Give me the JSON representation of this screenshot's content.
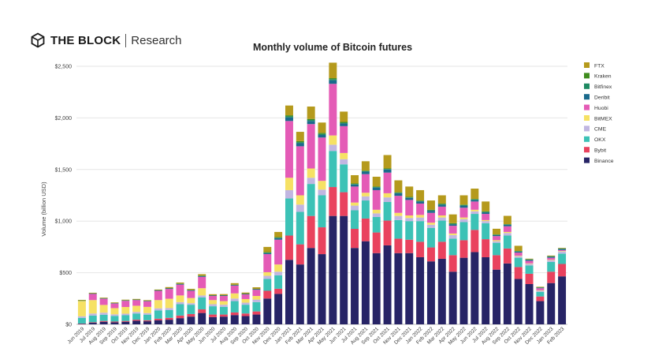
{
  "brand": {
    "name": "THE BLOCK",
    "sub": "Research",
    "logo_icon": "the-block-cube-icon"
  },
  "colors": {
    "FTX": "#b59a1c",
    "Kraken": "#3f8c1e",
    "Bitfinex": "#1e8a62",
    "Deribit": "#1a6a8c",
    "Huobi": "#e45bb6",
    "BitMEX": "#f6e164",
    "CME": "#c1b6e1",
    "OKX": "#3cc2b6",
    "Bybit": "#e9425e",
    "Binance": "#272466"
  },
  "chart_data": {
    "type": "bar",
    "stacked": true,
    "title": "Monthly volume of Bitcoin futures",
    "xlabel": "",
    "ylabel": "Volume (billion USD)",
    "ylim": [
      0,
      2500
    ],
    "y_ticks": [
      0,
      500,
      1000,
      1500,
      2000,
      2500
    ],
    "y_tick_labels": [
      "$0",
      "$500",
      "$1,000",
      "$1,500",
      "$2,000",
      "$2,500"
    ],
    "grid": true,
    "legend_position": "right",
    "legend_order": [
      "FTX",
      "Kraken",
      "Bitfinex",
      "Deribit",
      "Huobi",
      "BitMEX",
      "CME",
      "OKX",
      "Bybit",
      "Binance"
    ],
    "categories": [
      "Jun 2019",
      "Jul 2019",
      "Aug 2019",
      "Sep 2019",
      "Oct 2019",
      "Nov 2019",
      "Dec 2019",
      "Jan 2020",
      "Feb 2020",
      "Mar 2020",
      "Apr 2020",
      "May 2020",
      "Jun 2020",
      "Jul 2020",
      "Aug 2020",
      "Sep 2020",
      "Oct 2020",
      "Nov 2020",
      "Dec 2020",
      "Jan 2021",
      "Feb 2021",
      "Mar 2021",
      "Apr 2021",
      "May 2021",
      "Jun 2021",
      "Jul 2021",
      "Aug 2021",
      "Sep 2021",
      "Oct 2021",
      "Nov 2021",
      "Dec 2021",
      "Jan 2022",
      "Feb 2022",
      "Mar 2022",
      "Apr 2022",
      "May 2022",
      "Jun 2022",
      "Jul 2022",
      "Aug 2022",
      "Sep 2022",
      "Oct 2022",
      "Nov 2022",
      "Dec 2022",
      "Jan 2023",
      "Feb 2023"
    ],
    "series": [
      {
        "name": "Binance",
        "values": [
          5,
          15,
          25,
          20,
          25,
          35,
          30,
          40,
          45,
          60,
          75,
          110,
          70,
          75,
          90,
          80,
          95,
          250,
          295,
          625,
          580,
          740,
          680,
          1050,
          1050,
          740,
          805,
          690,
          765,
          690,
          690,
          650,
          610,
          635,
          510,
          645,
          700,
          650,
          530,
          590,
          440,
          390,
          225,
          400,
          465
        ]
      },
      {
        "name": "Bybit",
        "values": [
          3,
          5,
          8,
          7,
          8,
          10,
          9,
          15,
          18,
          25,
          25,
          35,
          25,
          20,
          25,
          25,
          30,
          75,
          50,
          235,
          195,
          310,
          260,
          280,
          230,
          185,
          220,
          200,
          240,
          140,
          130,
          150,
          135,
          165,
          160,
          170,
          215,
          175,
          140,
          145,
          115,
          100,
          45,
          110,
          120
        ]
      },
      {
        "name": "OKX",
        "values": [
          55,
          65,
          60,
          55,
          55,
          60,
          55,
          80,
          75,
          110,
          90,
          115,
          80,
          75,
          110,
          85,
          90,
          115,
          130,
          360,
          315,
          310,
          310,
          350,
          270,
          180,
          175,
          150,
          180,
          180,
          180,
          200,
          190,
          205,
          160,
          175,
          155,
          155,
          120,
          125,
          90,
          80,
          45,
          95,
          100
        ]
      },
      {
        "name": "CME",
        "values": [
          15,
          20,
          20,
          15,
          15,
          15,
          15,
          20,
          20,
          20,
          15,
          20,
          20,
          20,
          25,
          20,
          25,
          30,
          35,
          80,
          70,
          60,
          55,
          60,
          50,
          45,
          40,
          35,
          45,
          40,
          30,
          35,
          30,
          30,
          35,
          30,
          25,
          20,
          15,
          25,
          15,
          15,
          10,
          15,
          20
        ]
      },
      {
        "name": "BitMEX",
        "values": [
          150,
          130,
          75,
          60,
          65,
          60,
          60,
          80,
          90,
          65,
          50,
          70,
          40,
          35,
          50,
          35,
          35,
          35,
          70,
          120,
          90,
          90,
          85,
          90,
          60,
          30,
          35,
          35,
          40,
          30,
          25,
          25,
          20,
          20,
          15,
          15,
          15,
          10,
          10,
          10,
          5,
          5,
          5,
          5,
          5
        ]
      },
      {
        "name": "Huobi",
        "values": [
          0,
          60,
          60,
          45,
          60,
          55,
          55,
          90,
          95,
          105,
          70,
          110,
          40,
          50,
          75,
          45,
          60,
          175,
          240,
          550,
          475,
          430,
          420,
          500,
          260,
          155,
          180,
          190,
          200,
          165,
          150,
          110,
          95,
          85,
          75,
          95,
          80,
          60,
          40,
          55,
          30,
          25,
          20,
          20,
          10
        ]
      },
      {
        "name": "Deribit",
        "values": [
          2,
          3,
          3,
          3,
          3,
          3,
          3,
          4,
          5,
          6,
          5,
          7,
          4,
          5,
          6,
          5,
          6,
          10,
          15,
          35,
          30,
          30,
          25,
          35,
          25,
          20,
          25,
          25,
          30,
          25,
          20,
          20,
          20,
          20,
          15,
          20,
          15,
          15,
          10,
          15,
          10,
          10,
          5,
          10,
          10
        ]
      },
      {
        "name": "Bitfinex",
        "values": [
          1,
          2,
          2,
          2,
          2,
          2,
          2,
          2,
          2,
          3,
          3,
          3,
          2,
          2,
          2,
          2,
          2,
          5,
          5,
          10,
          10,
          10,
          10,
          10,
          8,
          5,
          5,
          5,
          5,
          5,
          5,
          5,
          5,
          5,
          5,
          5,
          5,
          5,
          3,
          3,
          3,
          3,
          2,
          3,
          3
        ]
      },
      {
        "name": "Kraken",
        "values": [
          1,
          1,
          1,
          1,
          1,
          1,
          1,
          1,
          1,
          1,
          1,
          1,
          1,
          1,
          1,
          1,
          1,
          5,
          5,
          10,
          10,
          10,
          10,
          10,
          8,
          5,
          5,
          5,
          5,
          5,
          5,
          5,
          5,
          5,
          5,
          5,
          5,
          5,
          3,
          3,
          3,
          3,
          2,
          3,
          3
        ]
      },
      {
        "name": "FTX",
        "values": [
          5,
          5,
          5,
          5,
          5,
          5,
          5,
          5,
          10,
          10,
          10,
          15,
          10,
          10,
          15,
          10,
          15,
          50,
          50,
          95,
          90,
          120,
          100,
          150,
          100,
          80,
          90,
          95,
          130,
          115,
          100,
          100,
          90,
          80,
          85,
          90,
          100,
          95,
          55,
          80,
          50,
          5,
          5,
          5,
          5
        ]
      }
    ]
  }
}
